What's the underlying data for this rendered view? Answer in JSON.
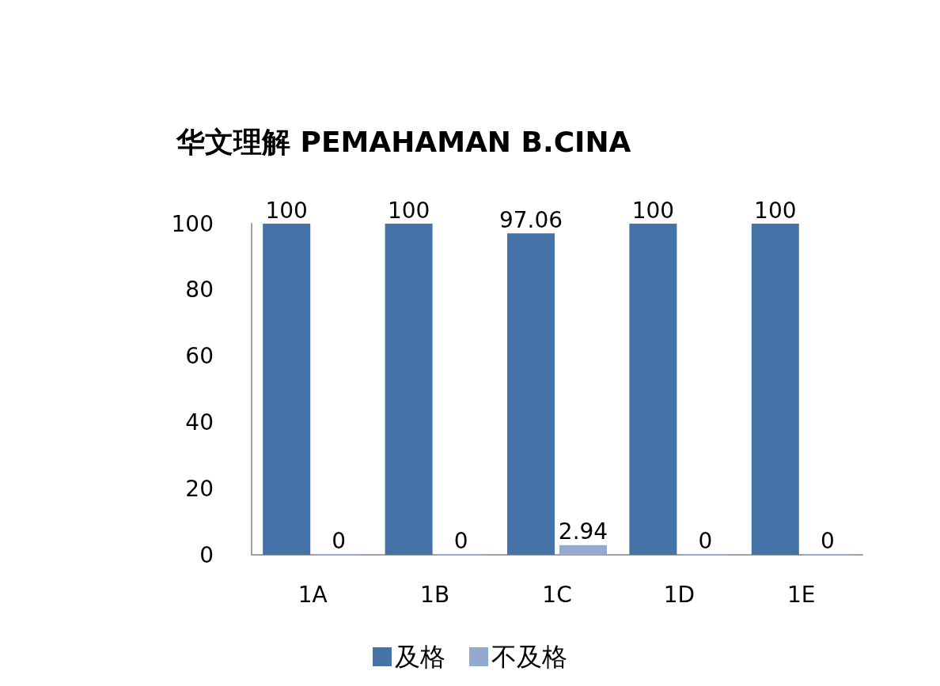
{
  "chart_data": {
    "type": "bar",
    "title": "华文理解 PEMAHAMAN B.CINA",
    "categories": [
      "1A",
      "1B",
      "1C",
      "1D",
      "1E"
    ],
    "series": [
      {
        "name": "及格",
        "color": "#4572a7",
        "values": [
          100,
          100,
          97.06,
          100,
          100
        ]
      },
      {
        "name": "不及格",
        "color": "#93a9cf",
        "values": [
          0,
          0,
          2.94,
          0,
          0
        ]
      }
    ],
    "ylim": [
      0,
      100
    ],
    "yticks": [
      0,
      20,
      40,
      60,
      80,
      100
    ],
    "grid": false,
    "legend": "bottom",
    "data_labels": true
  }
}
